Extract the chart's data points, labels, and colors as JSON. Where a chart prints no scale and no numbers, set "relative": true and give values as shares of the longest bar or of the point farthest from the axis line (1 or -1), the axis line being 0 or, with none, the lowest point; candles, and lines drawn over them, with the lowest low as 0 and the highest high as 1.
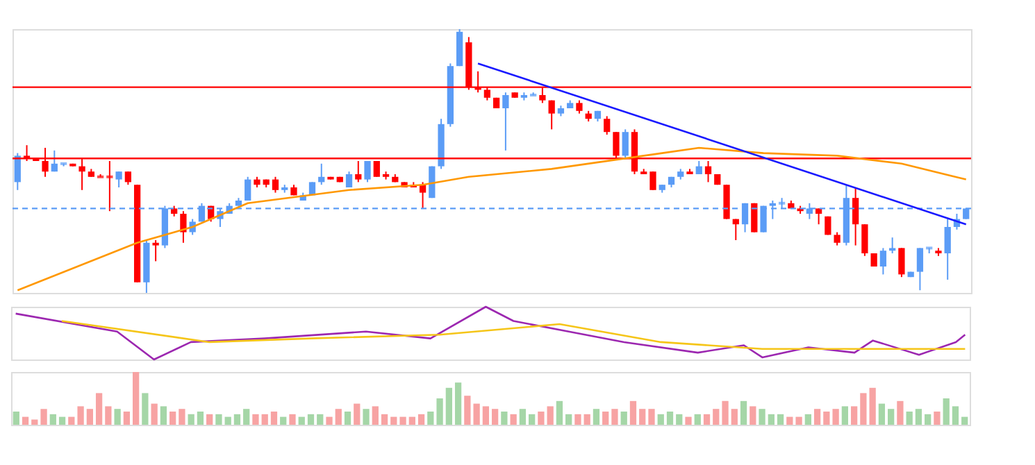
{
  "chart_data": [
    {
      "type": "candlestick",
      "relative": true,
      "tick_labels": false,
      "categories": [
        null,
        null,
        null,
        null,
        null,
        null,
        null,
        null,
        null,
        null,
        null,
        null,
        null,
        null,
        null,
        null,
        null,
        null,
        null,
        null,
        null,
        null,
        null,
        null,
        null,
        null,
        null,
        null,
        null,
        null,
        null,
        null,
        null,
        null,
        null,
        null,
        null,
        null,
        null,
        null,
        null,
        null,
        null,
        null,
        null,
        null,
        null,
        null,
        null,
        null,
        null,
        null,
        null,
        null,
        null,
        null,
        null,
        null,
        null,
        null,
        null,
        null,
        null,
        null,
        null,
        null,
        null,
        null,
        null,
        null,
        null,
        null,
        null,
        null,
        null,
        null,
        null,
        null,
        null,
        null,
        null,
        null,
        null,
        null,
        null,
        null,
        null,
        null,
        null,
        null,
        null,
        null,
        null,
        null,
        null,
        null,
        null,
        null,
        null,
        null,
        null,
        null,
        null,
        null
      ],
      "ohlc": [
        [
          0.42,
          0.53,
          0.39,
          0.52
        ],
        [
          0.52,
          0.56,
          0.5,
          0.51
        ],
        [
          0.51,
          0.51,
          0.5,
          0.5
        ],
        [
          0.5,
          0.55,
          0.44,
          0.46
        ],
        [
          0.46,
          0.54,
          0.46,
          0.49
        ],
        [
          0.49,
          0.49,
          0.48,
          0.49
        ],
        [
          0.49,
          0.49,
          0.48,
          0.48
        ],
        [
          0.48,
          0.51,
          0.39,
          0.46
        ],
        [
          0.46,
          0.47,
          0.44,
          0.44
        ],
        [
          0.44,
          0.45,
          0.44,
          0.44
        ],
        [
          0.44,
          0.5,
          0.31,
          0.44
        ],
        [
          0.43,
          0.46,
          0.4,
          0.46
        ],
        [
          0.46,
          0.46,
          0.41,
          0.42
        ],
        [
          0.41,
          0.41,
          0.04,
          0.04
        ],
        [
          0.04,
          0.2,
          0,
          0.19
        ],
        [
          0.19,
          0.2,
          0.12,
          0.18
        ],
        [
          0.18,
          0.33,
          0.17,
          0.32
        ],
        [
          0.32,
          0.33,
          0.29,
          0.3
        ],
        [
          0.3,
          0.31,
          0.19,
          0.23
        ],
        [
          0.23,
          0.28,
          0.22,
          0.27
        ],
        [
          0.27,
          0.34,
          0.27,
          0.33
        ],
        [
          0.33,
          0.33,
          0.27,
          0.28
        ],
        [
          0.28,
          0.32,
          0.25,
          0.31
        ],
        [
          0.3,
          0.34,
          0.3,
          0.33
        ],
        [
          0.33,
          0.36,
          0.33,
          0.35
        ],
        [
          0.35,
          0.44,
          0.35,
          0.43
        ],
        [
          0.43,
          0.44,
          0.4,
          0.41
        ],
        [
          0.43,
          0.43,
          0.4,
          0.41
        ],
        [
          0.43,
          0.44,
          0.38,
          0.39
        ],
        [
          0.39,
          0.41,
          0.38,
          0.4
        ],
        [
          0.4,
          0.41,
          0.37,
          0.37
        ],
        [
          0.35,
          0.38,
          0.35,
          0.37
        ],
        [
          0.37,
          0.42,
          0.37,
          0.42
        ],
        [
          0.42,
          0.49,
          0.41,
          0.44
        ],
        [
          0.44,
          0.44,
          0.43,
          0.43
        ],
        [
          0.44,
          0.44,
          0.42,
          0.42
        ],
        [
          0.4,
          0.46,
          0.4,
          0.45
        ],
        [
          0.45,
          0.5,
          0.42,
          0.43
        ],
        [
          0.43,
          0.5,
          0.42,
          0.5
        ],
        [
          0.5,
          0.5,
          0.44,
          0.44
        ],
        [
          0.45,
          0.46,
          0.43,
          0.44
        ],
        [
          0.44,
          0.45,
          0.42,
          0.42
        ],
        [
          0.42,
          0.42,
          0.4,
          0.4
        ],
        [
          0.41,
          0.42,
          0.4,
          0.4
        ],
        [
          0.41,
          0.42,
          0.32,
          0.38
        ],
        [
          0.36,
          0.48,
          0.36,
          0.48
        ],
        [
          0.48,
          0.66,
          0.47,
          0.64
        ],
        [
          0.64,
          0.87,
          0.63,
          0.86
        ],
        [
          0.86,
          1,
          0.86,
          0.99
        ],
        [
          0.95,
          0.97,
          0.77,
          0.78
        ],
        [
          0.78,
          0.84,
          0.76,
          0.77
        ],
        [
          0.77,
          0.78,
          0.73,
          0.74
        ],
        [
          0.74,
          0.74,
          0.7,
          0.7
        ],
        [
          0.7,
          0.76,
          0.54,
          0.75
        ],
        [
          0.76,
          0.76,
          0.74,
          0.74
        ],
        [
          0.74,
          0.76,
          0.73,
          0.75
        ],
        [
          0.75,
          0.76,
          0.75,
          0.75
        ],
        [
          0.75,
          0.78,
          0.72,
          0.73
        ],
        [
          0.73,
          0.73,
          0.62,
          0.68
        ],
        [
          0.68,
          0.71,
          0.67,
          0.7
        ],
        [
          0.7,
          0.73,
          0.7,
          0.72
        ],
        [
          0.72,
          0.73,
          0.68,
          0.69
        ],
        [
          0.68,
          0.69,
          0.65,
          0.66
        ],
        [
          0.66,
          0.69,
          0.65,
          0.69
        ],
        [
          0.66,
          0.67,
          0.6,
          0.61
        ],
        [
          0.61,
          0.61,
          0.51,
          0.52
        ],
        [
          0.52,
          0.62,
          0.51,
          0.61
        ],
        [
          0.61,
          0.62,
          0.45,
          0.46
        ],
        [
          0.46,
          0.47,
          0.45,
          0.45
        ],
        [
          0.46,
          0.46,
          0.39,
          0.39
        ],
        [
          0.39,
          0.41,
          0.38,
          0.41
        ],
        [
          0.41,
          0.44,
          0.4,
          0.44
        ],
        [
          0.44,
          0.47,
          0.43,
          0.46
        ],
        [
          0.46,
          0.47,
          0.45,
          0.45
        ],
        [
          0.45,
          0.5,
          0.45,
          0.48
        ],
        [
          0.48,
          0.5,
          0.42,
          0.45
        ],
        [
          0.45,
          0.45,
          0.41,
          0.41
        ],
        [
          0.41,
          0.41,
          0.28,
          0.28
        ],
        [
          0.28,
          0.28,
          0.2,
          0.26
        ],
        [
          0.26,
          0.34,
          0.23,
          0.34
        ],
        [
          0.34,
          0.34,
          0.23,
          0.23
        ],
        [
          0.23,
          0.33,
          0.23,
          0.33
        ],
        [
          0.33,
          0.35,
          0.28,
          0.34
        ],
        [
          0.34,
          0.36,
          0.32,
          0.34
        ],
        [
          0.34,
          0.35,
          0.32,
          0.32
        ],
        [
          0.32,
          0.33,
          0.3,
          0.31
        ],
        [
          0.3,
          0.34,
          0.28,
          0.32
        ],
        [
          0.32,
          0.32,
          0.26,
          0.3
        ],
        [
          0.29,
          0.29,
          0.22,
          0.22
        ],
        [
          0.22,
          0.23,
          0.18,
          0.19
        ],
        [
          0.19,
          0.41,
          0.18,
          0.36
        ],
        [
          0.36,
          0.4,
          0.18,
          0.26
        ],
        [
          0.26,
          0.26,
          0.14,
          0.15
        ],
        [
          0.15,
          0.15,
          0.1,
          0.1
        ],
        [
          0.1,
          0.17,
          0.07,
          0.16
        ],
        [
          0.16,
          0.21,
          0.15,
          0.17
        ],
        [
          0.17,
          0.17,
          0.06,
          0.07
        ],
        [
          0.06,
          0.08,
          0.06,
          0.08
        ],
        [
          0.08,
          0.17,
          0.01,
          0.17
        ],
        [
          0.17,
          0.17,
          0.15,
          0.17
        ],
        [
          0.16,
          0.17,
          0.14,
          0.15
        ],
        [
          0.15,
          0.28,
          0.05,
          0.25
        ],
        [
          0.25,
          0.3,
          0.24,
          0.28
        ],
        [
          0.28,
          0.32,
          0.28,
          0.32
        ]
      ],
      "colors": [
        "#5b9cf6",
        "#ff0000",
        "#ff0000",
        "#ff0000",
        "#5b9cf6",
        "#5b9cf6",
        "#ff0000",
        "#ff0000",
        "#ff0000",
        "#ff0000",
        "#ff0000",
        "#5b9cf6",
        "#ff0000",
        "#ff0000",
        "#5b9cf6",
        "#ff0000",
        "#5b9cf6",
        "#ff0000",
        "#ff0000",
        "#5b9cf6",
        "#5b9cf6",
        "#ff0000",
        "#5b9cf6",
        "#5b9cf6",
        "#5b9cf6",
        "#5b9cf6",
        "#ff0000",
        "#ff0000",
        "#ff0000",
        "#5b9cf6",
        "#ff0000",
        "#5b9cf6",
        "#5b9cf6",
        "#5b9cf6",
        "#ff0000",
        "#ff0000",
        "#5b9cf6",
        "#ff0000",
        "#5b9cf6",
        "#ff0000",
        "#ff0000",
        "#ff0000",
        "#ff0000",
        "#ff0000",
        "#ff0000",
        "#5b9cf6",
        "#5b9cf6",
        "#5b9cf6",
        "#5b9cf6",
        "#ff0000",
        "#ff0000",
        "#ff0000",
        "#ff0000",
        "#5b9cf6",
        "#ff0000",
        "#5b9cf6",
        "#5b9cf6",
        "#ff0000",
        "#ff0000",
        "#5b9cf6",
        "#5b9cf6",
        "#ff0000",
        "#ff0000",
        "#5b9cf6",
        "#ff0000",
        "#ff0000",
        "#5b9cf6",
        "#ff0000",
        "#ff0000",
        "#ff0000",
        "#5b9cf6",
        "#5b9cf6",
        "#5b9cf6",
        "#ff0000",
        "#5b9cf6",
        "#ff0000",
        "#ff0000",
        "#ff0000",
        "#ff0000",
        "#5b9cf6",
        "#ff0000",
        "#5b9cf6",
        "#5b9cf6",
        "#5b9cf6",
        "#ff0000",
        "#ff0000",
        "#5b9cf6",
        "#ff0000",
        "#ff0000",
        "#ff0000",
        "#5b9cf6",
        "#ff0000",
        "#ff0000",
        "#ff0000",
        "#5b9cf6",
        "#5b9cf6",
        "#ff0000",
        "#5b9cf6",
        "#5b9cf6",
        "#5b9cf6",
        "#ff0000",
        "#5b9cf6",
        "#5b9cf6",
        "#5b9cf6"
      ],
      "series": [
        {
          "type": "line",
          "color": "#ff9800",
          "values": [
            0.01,
            null,
            null,
            null,
            null,
            null,
            null,
            null,
            null,
            null,
            null,
            null,
            null,
            0.19,
            null,
            null,
            null,
            null,
            null,
            0.25,
            null,
            null,
            null,
            null,
            null,
            0.34,
            null,
            null,
            null,
            null,
            null,
            null,
            null,
            null,
            null,
            null,
            0.39,
            null,
            null,
            null,
            null,
            null,
            null,
            null,
            0.41,
            null,
            null,
            null,
            null,
            0.44,
            null,
            null,
            null,
            null,
            null,
            null,
            null,
            null,
            0.47,
            null,
            null,
            null,
            null,
            null,
            null,
            null,
            null,
            null,
            null,
            null,
            0.53,
            null,
            null,
            null,
            0.55,
            null,
            null,
            null,
            null,
            null,
            null,
            0.53,
            null,
            null,
            null,
            null,
            null,
            null,
            null,
            0.52,
            null,
            null,
            null,
            null,
            null,
            null,
            0.49,
            null,
            null,
            null,
            null,
            null,
            null,
            0.43
          ]
        },
        {
          "type": "line",
          "color": "#1a1aff",
          "values": [
            null,
            null,
            null,
            null,
            null,
            null,
            null,
            null,
            null,
            null,
            null,
            null,
            null,
            null,
            null,
            null,
            null,
            null,
            null,
            null,
            null,
            null,
            null,
            null,
            null,
            null,
            null,
            null,
            null,
            null,
            null,
            null,
            null,
            null,
            null,
            null,
            null,
            null,
            null,
            null,
            null,
            null,
            null,
            null,
            null,
            null,
            null,
            null,
            null,
            null,
            0.87,
            null,
            null,
            null,
            null,
            null,
            null,
            null,
            null,
            null,
            null,
            null,
            null,
            null,
            null,
            null,
            null,
            null,
            null,
            null,
            null,
            null,
            null,
            null,
            null,
            null,
            null,
            null,
            null,
            null,
            null,
            null,
            null,
            null,
            null,
            null,
            null,
            null,
            null,
            null,
            null,
            null,
            null,
            null,
            null,
            null,
            null,
            null,
            null,
            null,
            null,
            null,
            null,
            0.26
          ]
        }
      ],
      "ref_lines": [
        {
          "axis": "y",
          "value": 0.78,
          "color": "#ff0000"
        },
        {
          "axis": "y",
          "value": 0.51,
          "color": "#ff0000"
        },
        {
          "axis": "y",
          "value": 0.32,
          "color": "#5b9cf6",
          "line_style": "dashed"
        }
      ]
    },
    {
      "type": "line",
      "relative": true,
      "tick_labels": false,
      "categories": [
        null,
        null,
        null,
        null,
        null,
        null,
        null,
        null,
        null,
        null,
        null,
        null,
        null,
        null,
        null,
        null,
        null,
        null,
        null,
        null,
        null,
        null,
        null,
        null,
        null,
        null,
        null,
        null,
        null,
        null,
        null,
        null,
        null,
        null,
        null,
        null,
        null,
        null,
        null,
        null,
        null,
        null,
        null,
        null,
        null,
        null,
        null,
        null,
        null,
        null,
        null,
        null,
        null,
        null,
        null,
        null,
        null,
        null,
        null,
        null,
        null,
        null,
        null,
        null,
        null,
        null,
        null,
        null,
        null,
        null,
        null,
        null,
        null,
        null,
        null,
        null,
        null,
        null,
        null,
        null,
        null,
        null,
        null,
        null,
        null,
        null,
        null,
        null,
        null,
        null,
        null,
        null,
        null,
        null,
        null,
        null,
        null,
        null,
        null,
        null,
        null,
        null,
        null,
        null
      ],
      "series": [
        {
          "color": "#9c27b0",
          "values": [
            0.87,
            null,
            null,
            null,
            null,
            null,
            null,
            null,
            null,
            null,
            null,
            0.53,
            null,
            null,
            null,
            0,
            null,
            null,
            null,
            0.33,
            null,
            null,
            null,
            null,
            null,
            null,
            null,
            0.4,
            null,
            null,
            null,
            null,
            null,
            null,
            null,
            null,
            null,
            null,
            0.53,
            null,
            null,
            null,
            null,
            null,
            null,
            0.4,
            null,
            null,
            null,
            null,
            null,
            1,
            null,
            null,
            0.73,
            null,
            null,
            null,
            null,
            null,
            0.53,
            null,
            null,
            null,
            null,
            null,
            0.33,
            null,
            null,
            null,
            null,
            null,
            null,
            null,
            0.13,
            null,
            null,
            null,
            null,
            0.27,
            null,
            0.04,
            null,
            null,
            null,
            null,
            0.23,
            null,
            null,
            null,
            null,
            0.13,
            null,
            0.36,
            null,
            null,
            null,
            null,
            0.09,
            null,
            null,
            null,
            0.33,
            0.47
          ]
        },
        {
          "color": "#f5c518",
          "values": [
            null,
            null,
            null,
            null,
            null,
            0.73,
            null,
            null,
            null,
            null,
            null,
            null,
            null,
            null,
            null,
            null,
            null,
            null,
            null,
            null,
            null,
            0.33,
            null,
            null,
            null,
            null,
            null,
            null,
            null,
            null,
            null,
            null,
            0.4,
            null,
            null,
            null,
            null,
            null,
            null,
            null,
            null,
            null,
            null,
            null,
            null,
            null,
            0.47,
            null,
            null,
            null,
            null,
            null,
            null,
            null,
            null,
            null,
            null,
            null,
            null,
            0.67,
            null,
            null,
            null,
            null,
            null,
            null,
            null,
            null,
            null,
            null,
            0.33,
            null,
            null,
            null,
            null,
            null,
            null,
            null,
            null,
            null,
            null,
            0.2,
            null,
            null,
            null,
            null,
            null,
            null,
            null,
            null,
            null,
            null,
            null,
            null,
            null,
            null,
            null,
            null,
            0.2,
            null,
            null,
            null,
            null,
            0.2
          ]
        }
      ]
    },
    {
      "type": "bar",
      "relative": true,
      "tick_labels": false,
      "categories": [
        null,
        null,
        null,
        null,
        null,
        null,
        null,
        null,
        null,
        null,
        null,
        null,
        null,
        null,
        null,
        null,
        null,
        null,
        null,
        null,
        null,
        null,
        null,
        null,
        null,
        null,
        null,
        null,
        null,
        null,
        null,
        null,
        null,
        null,
        null,
        null,
        null,
        null,
        null,
        null,
        null,
        null,
        null,
        null,
        null,
        null,
        null,
        null,
        null,
        null,
        null,
        null,
        null,
        null,
        null,
        null,
        null,
        null,
        null,
        null,
        null,
        null,
        null,
        null,
        null,
        null,
        null,
        null,
        null,
        null,
        null,
        null,
        null,
        null,
        null,
        null,
        null,
        null,
        null,
        null,
        null,
        null,
        null,
        null,
        null,
        null,
        null,
        null,
        null,
        null,
        null,
        null,
        null,
        null,
        null,
        null,
        null,
        null,
        null,
        null,
        null,
        null,
        null,
        null
      ],
      "values": [
        0.25,
        0.15,
        0.1,
        0.3,
        0.2,
        0.15,
        0.15,
        0.35,
        0.3,
        0.6,
        0.35,
        0.3,
        0.25,
        1,
        0.6,
        0.4,
        0.35,
        0.25,
        0.3,
        0.2,
        0.25,
        0.2,
        0.2,
        0.15,
        0.2,
        0.3,
        0.2,
        0.2,
        0.25,
        0.15,
        0.2,
        0.15,
        0.2,
        0.2,
        0.15,
        0.3,
        0.25,
        0.4,
        0.3,
        0.35,
        0.2,
        0.15,
        0.15,
        0.15,
        0.2,
        0.25,
        0.5,
        0.7,
        0.8,
        0.55,
        0.4,
        0.35,
        0.3,
        0.25,
        0.2,
        0.3,
        0.2,
        0.25,
        0.35,
        0.45,
        0.2,
        0.2,
        0.2,
        0.3,
        0.25,
        0.3,
        0.25,
        0.45,
        0.3,
        0.3,
        0.2,
        0.25,
        0.2,
        0.15,
        0.2,
        0.2,
        0.3,
        0.45,
        0.3,
        0.45,
        0.35,
        0.3,
        0.2,
        0.2,
        0.15,
        0.15,
        0.2,
        0.3,
        0.25,
        0.3,
        0.35,
        0.35,
        0.6,
        0.7,
        0.4,
        0.3,
        0.45,
        0.25,
        0.3,
        0.2,
        0.25,
        0.5,
        0.35,
        0.15
      ],
      "colors": [
        "#a5d6a7",
        "#f7a3a3",
        "#f7a3a3",
        "#f7a3a3",
        "#a5d6a7",
        "#a5d6a7",
        "#f7a3a3",
        "#f7a3a3",
        "#f7a3a3",
        "#f7a3a3",
        "#f7a3a3",
        "#a5d6a7",
        "#f7a3a3",
        "#f7a3a3",
        "#a5d6a7",
        "#f7a3a3",
        "#a5d6a7",
        "#f7a3a3",
        "#f7a3a3",
        "#a5d6a7",
        "#a5d6a7",
        "#f7a3a3",
        "#a5d6a7",
        "#a5d6a7",
        "#a5d6a7",
        "#a5d6a7",
        "#f7a3a3",
        "#f7a3a3",
        "#f7a3a3",
        "#a5d6a7",
        "#f7a3a3",
        "#a5d6a7",
        "#a5d6a7",
        "#a5d6a7",
        "#f7a3a3",
        "#f7a3a3",
        "#a5d6a7",
        "#f7a3a3",
        "#a5d6a7",
        "#f7a3a3",
        "#f7a3a3",
        "#f7a3a3",
        "#f7a3a3",
        "#f7a3a3",
        "#f7a3a3",
        "#a5d6a7",
        "#a5d6a7",
        "#a5d6a7",
        "#a5d6a7",
        "#f7a3a3",
        "#f7a3a3",
        "#f7a3a3",
        "#f7a3a3",
        "#a5d6a7",
        "#f7a3a3",
        "#a5d6a7",
        "#a5d6a7",
        "#f7a3a3",
        "#f7a3a3",
        "#a5d6a7",
        "#a5d6a7",
        "#f7a3a3",
        "#f7a3a3",
        "#a5d6a7",
        "#f7a3a3",
        "#f7a3a3",
        "#a5d6a7",
        "#f7a3a3",
        "#f7a3a3",
        "#f7a3a3",
        "#a5d6a7",
        "#a5d6a7",
        "#a5d6a7",
        "#f7a3a3",
        "#a5d6a7",
        "#f7a3a3",
        "#f7a3a3",
        "#f7a3a3",
        "#f7a3a3",
        "#a5d6a7",
        "#f7a3a3",
        "#a5d6a7",
        "#a5d6a7",
        "#a5d6a7",
        "#f7a3a3",
        "#f7a3a3",
        "#a5d6a7",
        "#f7a3a3",
        "#f7a3a3",
        "#f7a3a3",
        "#a5d6a7",
        "#f7a3a3",
        "#f7a3a3",
        "#f7a3a3",
        "#a5d6a7",
        "#a5d6a7",
        "#f7a3a3",
        "#a5d6a7",
        "#a5d6a7",
        "#a5d6a7",
        "#f7a3a3",
        "#a5d6a7",
        "#a5d6a7",
        "#a5d6a7"
      ]
    }
  ]
}
